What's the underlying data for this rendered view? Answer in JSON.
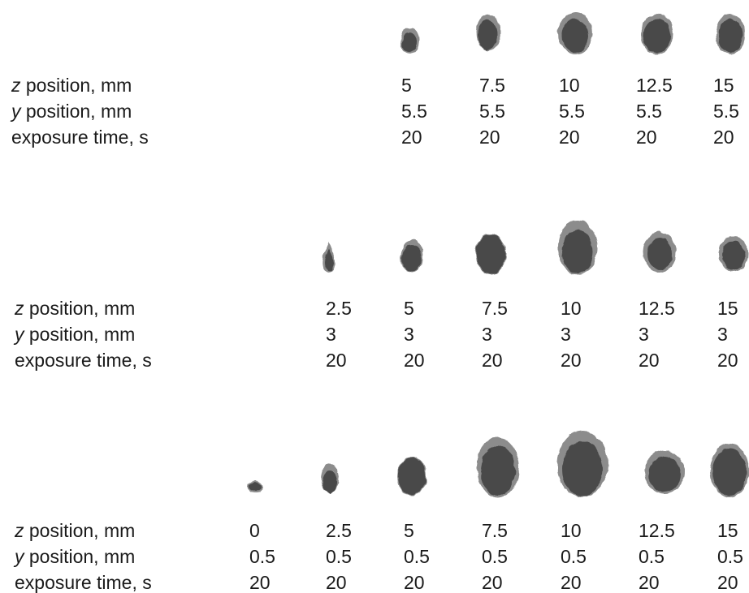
{
  "row_labels": {
    "z_var": "z",
    "z_rest": " position, mm",
    "y_var": "y",
    "y_rest": " position, mm",
    "exposure": "exposure time, s"
  },
  "rows": [
    {
      "z": [
        "5",
        "7.5",
        "10",
        "12.5",
        "15"
      ],
      "y": [
        "5.5",
        "5.5",
        "5.5",
        "5.5",
        "5.5"
      ],
      "t": [
        "20",
        "20",
        "20",
        "20",
        "20"
      ]
    },
    {
      "z": [
        "2.5",
        "5",
        "7.5",
        "10",
        "12.5",
        "15"
      ],
      "y": [
        "3",
        "3",
        "3",
        "3",
        "3",
        "3"
      ],
      "t": [
        "20",
        "20",
        "20",
        "20",
        "20",
        "20"
      ]
    },
    {
      "z": [
        "0",
        "2.5",
        "5",
        "7.5",
        "10",
        "12.5",
        "15"
      ],
      "y": [
        "0.5",
        "0.5",
        "0.5",
        "0.5",
        "0.5",
        "0.5",
        "0.5"
      ],
      "t": [
        "20",
        "20",
        "20",
        "20",
        "20",
        "20",
        "20"
      ]
    }
  ],
  "colors": {
    "spot_core": "#4a4a4a",
    "spot_halo": "#8c8c8c",
    "text": "#1a1a1a"
  }
}
